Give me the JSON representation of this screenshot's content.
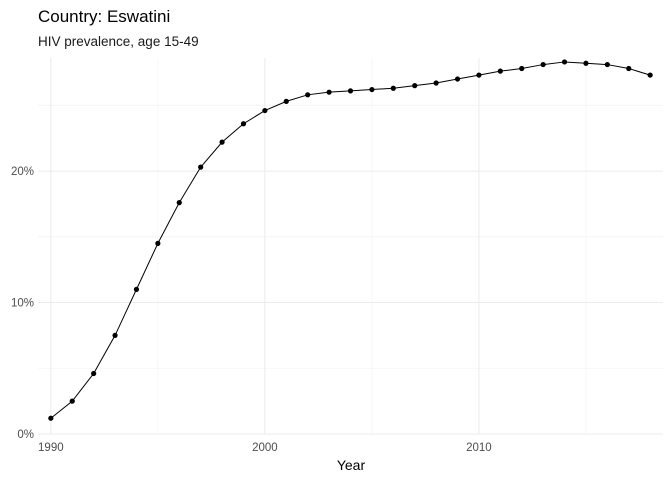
{
  "chart_data": {
    "type": "line",
    "title": "Country: Eswatini",
    "subtitle": "HIV prevalence, age 15-49",
    "xlabel": "Year",
    "ylabel": "",
    "xlim": [
      1989.4,
      2018.6
    ],
    "ylim": [
      0,
      28.6
    ],
    "x_ticks": [
      1990,
      2000,
      2010
    ],
    "y_ticks": [
      0,
      10,
      20
    ],
    "y_tick_labels": [
      "0%",
      "10%",
      "20%"
    ],
    "grid": true,
    "legend": "none",
    "x": [
      1990,
      1991,
      1992,
      1993,
      1994,
      1995,
      1996,
      1997,
      1998,
      1999,
      2000,
      2001,
      2002,
      2003,
      2004,
      2005,
      2006,
      2007,
      2008,
      2009,
      2010,
      2011,
      2012,
      2013,
      2014,
      2015,
      2016,
      2017,
      2018
    ],
    "series": [
      {
        "values": [
          1.2,
          2.5,
          4.6,
          7.5,
          11.0,
          14.5,
          17.6,
          20.3,
          22.2,
          23.6,
          24.6,
          25.3,
          25.8,
          26.0,
          26.1,
          26.2,
          26.3,
          26.5,
          26.7,
          27.0,
          27.3,
          27.6,
          27.8,
          28.1,
          28.3,
          28.2,
          28.1,
          27.8,
          27.3
        ]
      }
    ]
  }
}
